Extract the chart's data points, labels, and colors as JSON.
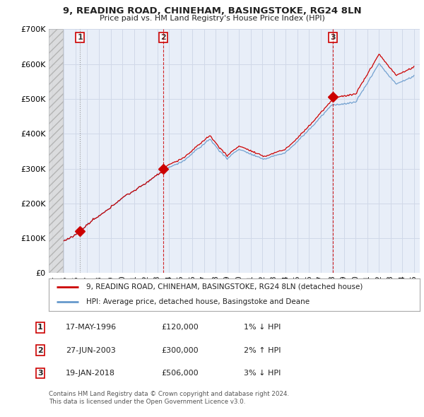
{
  "title": "9, READING ROAD, CHINEHAM, BASINGSTOKE, RG24 8LN",
  "subtitle": "Price paid vs. HM Land Registry's House Price Index (HPI)",
  "transactions": [
    {
      "num": 1,
      "date": "17-MAY-1996",
      "price": 120000,
      "year": 1996.38,
      "hpi_pct": "1%",
      "hpi_dir": "↓"
    },
    {
      "num": 2,
      "date": "27-JUN-2003",
      "price": 300000,
      "year": 2003.49,
      "hpi_pct": "2%",
      "hpi_dir": "↑"
    },
    {
      "num": 3,
      "date": "19-JAN-2018",
      "price": 506000,
      "year": 2018.05,
      "hpi_pct": "3%",
      "hpi_dir": "↓"
    }
  ],
  "ylim": [
    0,
    700000
  ],
  "yticks": [
    0,
    100000,
    200000,
    300000,
    400000,
    500000,
    600000,
    700000
  ],
  "xlim_start": 1993.7,
  "xlim_end": 2025.5,
  "hatch_end": 1994.92,
  "line_color_red": "#cc0000",
  "line_color_blue": "#6699cc",
  "grid_color": "#d0d8e8",
  "plot_bg": "#e8eef8",
  "background_color": "#ffffff",
  "legend_line1": "9, READING ROAD, CHINEHAM, BASINGSTOKE, RG24 8LN (detached house)",
  "legend_line2": "HPI: Average price, detached house, Basingstoke and Deane",
  "footnote1": "Contains HM Land Registry data © Crown copyright and database right 2024.",
  "footnote2": "This data is licensed under the Open Government Licence v3.0."
}
